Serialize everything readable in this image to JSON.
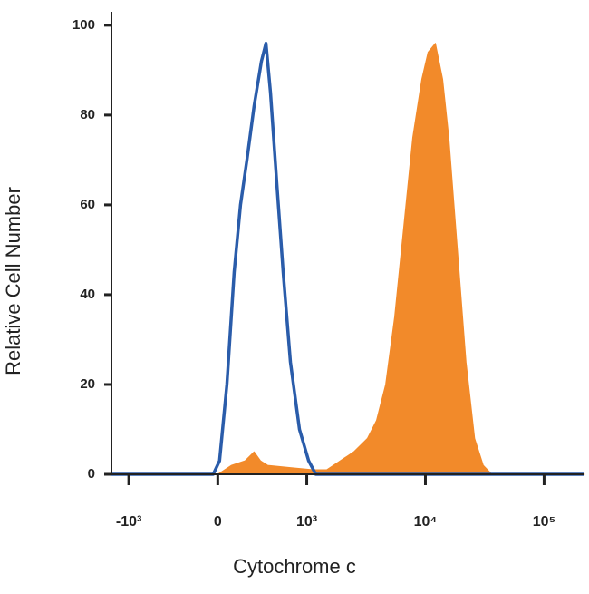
{
  "chart_data": {
    "type": "histogram-overlay",
    "xlabel": "Cytochrome c",
    "ylabel": "Relative Cell Number",
    "xscale": "biexponential",
    "xlim": [
      -1400,
      219000
    ],
    "xticks": [
      {
        "value": -1000,
        "label": "-10³"
      },
      0,
      {
        "value": 1000,
        "label": "10³"
      },
      {
        "value": 10000,
        "label": "10⁴"
      },
      {
        "value": 100000,
        "label": "10⁵"
      }
    ],
    "ylim": [
      0,
      103
    ],
    "yticks": [
      0,
      20,
      40,
      60,
      80,
      100
    ],
    "series": [
      {
        "color": "#f28a2a",
        "fill": true,
        "x": [
          -1400,
          0,
          153,
          306,
          408,
          480,
          561,
          816,
          1131,
          1472,
          1914,
          2490,
          3246,
          3870,
          4620,
          5500,
          6560,
          7820,
          9330,
          10520,
          12130,
          13960,
          15750,
          18610,
          21990,
          25990,
          30710,
          36300,
          219000
        ],
        "values": [
          0,
          0,
          2,
          3,
          5,
          3,
          2,
          1.5,
          1,
          1,
          3,
          5,
          8,
          12,
          20,
          35,
          55,
          75,
          88,
          94,
          96,
          88,
          75,
          50,
          25,
          8,
          2,
          0,
          0
        ]
      },
      {
        "color": "#2a5caa",
        "fill": false,
        "x": [
          -1400,
          -51,
          20,
          102,
          184,
          255,
          327,
          408,
          490,
          541,
          592,
          663,
          735,
          816,
          918,
          1036,
          1192,
          219000
        ],
        "values": [
          0,
          0,
          3,
          20,
          45,
          60,
          70,
          82,
          92,
          96,
          85,
          65,
          45,
          25,
          10,
          3,
          0,
          0
        ]
      }
    ]
  }
}
